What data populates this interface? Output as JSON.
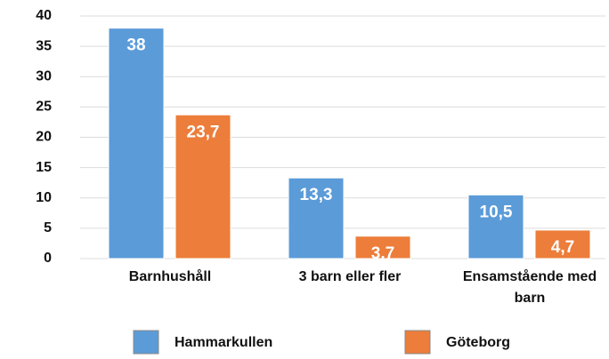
{
  "chart_data": {
    "type": "bar",
    "categories": [
      "Barnhushåll",
      "3 barn eller fler",
      "Ensamstående med barn"
    ],
    "series": [
      {
        "name": "Hammarkullen",
        "color": "#5b9bd8",
        "values": [
          38,
          13.3,
          10.5
        ],
        "value_labels": [
          "38",
          "13,3",
          "10,5"
        ]
      },
      {
        "name": "Göteborg",
        "color": "#ec7d3a",
        "values": [
          23.7,
          3.7,
          4.7
        ],
        "value_labels": [
          "23,7",
          "3,7",
          "4,7"
        ]
      }
    ],
    "ylim": [
      0,
      40
    ],
    "yticks": [
      0,
      5,
      10,
      15,
      20,
      25,
      30,
      35,
      40
    ],
    "grid": true,
    "legend": "bottom"
  }
}
